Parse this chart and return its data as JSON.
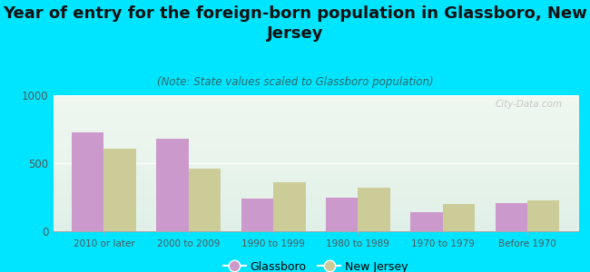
{
  "title": "Year of entry for the foreign-born population in Glassboro, New\nJersey",
  "subtitle": "(Note: State values scaled to Glassboro population)",
  "categories": [
    "2010 or later",
    "2000 to 2009",
    "1990 to 1999",
    "1980 to 1989",
    "1970 to 1979",
    "Before 1970"
  ],
  "glassboro_values": [
    730,
    680,
    240,
    250,
    140,
    210
  ],
  "nj_values": [
    610,
    460,
    360,
    320,
    200,
    230
  ],
  "glassboro_color": "#cc99cc",
  "nj_color": "#cccc99",
  "background_outer": "#00e5ff",
  "background_inner": "#e8f5e8",
  "ylim": [
    0,
    1000
  ],
  "yticks": [
    0,
    500,
    1000
  ],
  "bar_width": 0.38,
  "legend_labels": [
    "Glassboro",
    "New Jersey"
  ],
  "watermark": "City-Data.com",
  "title_fontsize": 13,
  "subtitle_fontsize": 8.5
}
